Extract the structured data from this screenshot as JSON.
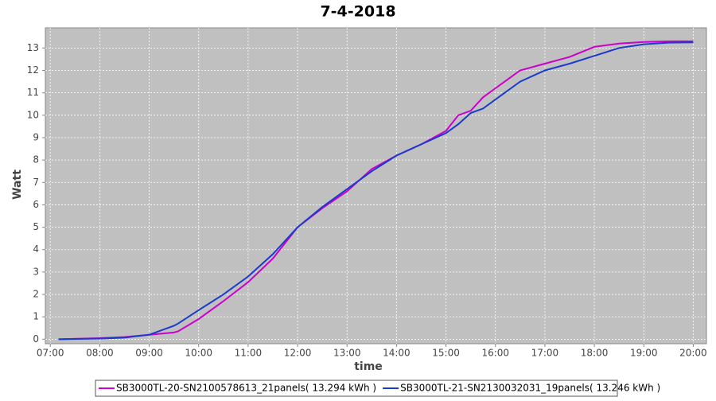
{
  "chart_data": {
    "type": "line",
    "title": "7-4-2018",
    "x_label": "time",
    "y_label": "Watt",
    "x": [
      "07:10",
      "08:00",
      "08:30",
      "09:00",
      "09:30",
      "09:35",
      "10:00",
      "10:30",
      "11:00",
      "11:30",
      "12:00",
      "12:30",
      "13:00",
      "13:30",
      "14:00",
      "14:30",
      "15:00",
      "15:15",
      "15:30",
      "15:45",
      "16:00",
      "16:30",
      "17:00",
      "17:30",
      "18:00",
      "18:30",
      "19:00",
      "19:30",
      "20:00"
    ],
    "series": [
      {
        "name": "SB3000TL-20-SN2100578613_21panels( 13.294 kWh )",
        "color": "#cc00cc",
        "values": [
          0,
          0.05,
          0.1,
          0.2,
          0.3,
          0.35,
          0.9,
          1.7,
          2.55,
          3.6,
          5.0,
          5.85,
          6.6,
          7.6,
          8.2,
          8.7,
          9.3,
          10.0,
          10.2,
          10.8,
          11.2,
          12.0,
          12.3,
          12.6,
          13.05,
          13.2,
          13.27,
          13.3,
          13.3
        ]
      },
      {
        "name": "SB3000TL-21-SN2130032031_19panels( 13.246 kWh )",
        "color": "#1a3acc",
        "values": [
          0,
          0.03,
          0.07,
          0.2,
          0.6,
          0.7,
          1.3,
          2.0,
          2.8,
          3.8,
          5.0,
          5.9,
          6.7,
          7.5,
          8.2,
          8.7,
          9.2,
          9.6,
          10.1,
          10.3,
          10.7,
          11.5,
          12.0,
          12.3,
          12.65,
          13.0,
          13.17,
          13.24,
          13.25
        ]
      }
    ],
    "xlim": [
      "06:54",
      "20:16"
    ],
    "xticks": [
      "07:00",
      "08:00",
      "09:00",
      "10:00",
      "11:00",
      "12:00",
      "13:00",
      "14:00",
      "15:00",
      "16:00",
      "17:00",
      "18:00",
      "19:00",
      "20:00"
    ],
    "ylim": [
      -0.2,
      13.9
    ],
    "yticks": [
      0,
      1,
      2,
      3,
      4,
      5,
      6,
      7,
      8,
      9,
      10,
      11,
      12,
      13
    ],
    "grid": true,
    "legend": "bottom"
  }
}
